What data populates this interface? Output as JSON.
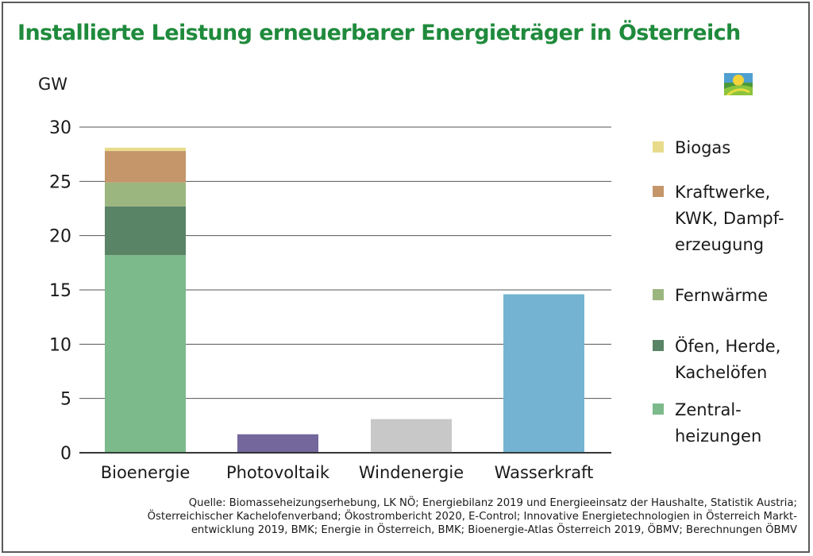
{
  "title": "Installierte Leistung erneuerbarer Energieträger in Österreich",
  "unit_label": "GW",
  "colors": {
    "title": "#1f8a3c",
    "biogas": "#e8dc8c",
    "kraftwerke": "#c4966a",
    "fernwaerme": "#9bb67f",
    "oefen": "#5a8466",
    "zentral": "#7cb98b",
    "photovoltaik": "#73679b",
    "windenergie": "#c8c8c8",
    "wasserkraft": "#74b4d2"
  },
  "chart_data": {
    "type": "bar",
    "stacked": true,
    "categories": [
      "Bioenergie",
      "Photovoltaik",
      "Windenergie",
      "Wasserkraft"
    ],
    "ylabel": "GW",
    "ylim": [
      0,
      30
    ],
    "yticks": [
      "0",
      "5",
      "10",
      "15",
      "20",
      "25",
      "30"
    ],
    "grid": true,
    "legend_position": "right",
    "stack_series": [
      {
        "name": "Zentral-\nheizungen",
        "color_key": "zentral",
        "value": 18.2
      },
      {
        "name": "Öfen, Herde,\nKachelöfen",
        "color_key": "oefen",
        "value": 4.5
      },
      {
        "name": "Fernwärme",
        "color_key": "fernwaerme",
        "value": 2.2
      },
      {
        "name": "Kraftwerke,\nKWK, Dampf-\nerzeugung",
        "color_key": "kraftwerke",
        "value": 2.9
      },
      {
        "name": "Biogas",
        "color_key": "biogas",
        "value": 0.3
      }
    ],
    "single_bars": [
      {
        "category": "Photovoltaik",
        "value": 1.7,
        "color_key": "photovoltaik"
      },
      {
        "category": "Windenergie",
        "value": 3.1,
        "color_key": "windenergie"
      },
      {
        "category": "Wasserkraft",
        "value": 14.6,
        "color_key": "wasserkraft"
      }
    ]
  },
  "legend": [
    {
      "label": "Biogas",
      "color_key": "biogas"
    },
    {
      "label": "Kraftwerke,\nKWK, Dampf-\nerzeugung",
      "color_key": "kraftwerke"
    },
    {
      "label": "Fernwärme",
      "color_key": "fernwaerme"
    },
    {
      "label": "Öfen, Herde,\nKachelöfen",
      "color_key": "oefen"
    },
    {
      "label": "Zentral-\nheizungen",
      "color_key": "zentral"
    }
  ],
  "source_lines": [
    "Quelle: Biomasseheizungserhebung, LK NÖ; Energiebilanz 2019 und Energieeinsatz der Haushalte, Statistik Austria;",
    "Österreichischer Kachelofenverband; Ökostrombericht 2020, E-Control; Innovative Energietechnologien in Österreich Markt-",
    "entwicklung 2019, BMK; Energie in Österreich, BMK; Bioenergie-Atlas Österreich 2019, ÖBMV; Berechnungen ÖBMV"
  ]
}
